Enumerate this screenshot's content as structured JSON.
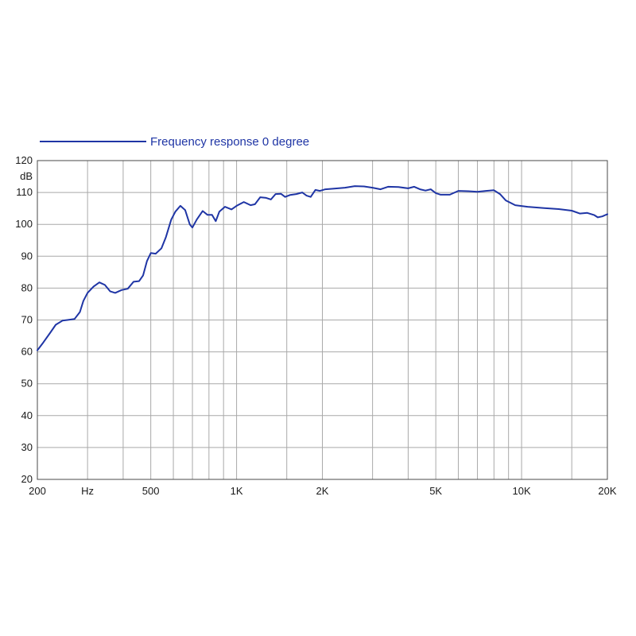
{
  "chart_data": {
    "type": "line",
    "legend_position": "top-left",
    "grid": true,
    "colors": {
      "series": "#1f35a5",
      "grid": "#a9a9a9",
      "axis": "#4a4a4a"
    },
    "series": [
      {
        "name": "Frequency response 0 degree",
        "points": [
          [
            200,
            60.5
          ],
          [
            210,
            63
          ],
          [
            222,
            66
          ],
          [
            232,
            68.5
          ],
          [
            245,
            69.8
          ],
          [
            255,
            70
          ],
          [
            270,
            70.3
          ],
          [
            282,
            72.5
          ],
          [
            290,
            76
          ],
          [
            300,
            78.5
          ],
          [
            315,
            80.5
          ],
          [
            330,
            81.8
          ],
          [
            345,
            81
          ],
          [
            360,
            79
          ],
          [
            375,
            78.5
          ],
          [
            395,
            79.4
          ],
          [
            415,
            79.8
          ],
          [
            435,
            82
          ],
          [
            455,
            82.2
          ],
          [
            470,
            84
          ],
          [
            485,
            88.5
          ],
          [
            500,
            91
          ],
          [
            520,
            90.8
          ],
          [
            545,
            92.5
          ],
          [
            565,
            96
          ],
          [
            590,
            101.5
          ],
          [
            610,
            104
          ],
          [
            635,
            105.8
          ],
          [
            660,
            104.5
          ],
          [
            685,
            100
          ],
          [
            700,
            99
          ],
          [
            725,
            101.5
          ],
          [
            760,
            104.2
          ],
          [
            790,
            103
          ],
          [
            820,
            103
          ],
          [
            845,
            101
          ],
          [
            870,
            104
          ],
          [
            910,
            105.5
          ],
          [
            960,
            104.7
          ],
          [
            1000,
            105.8
          ],
          [
            1060,
            107
          ],
          [
            1120,
            106
          ],
          [
            1160,
            106.3
          ],
          [
            1210,
            108.5
          ],
          [
            1270,
            108.3
          ],
          [
            1320,
            107.8
          ],
          [
            1370,
            109.5
          ],
          [
            1430,
            109.6
          ],
          [
            1480,
            108.6
          ],
          [
            1540,
            109.2
          ],
          [
            1620,
            109.5
          ],
          [
            1700,
            110
          ],
          [
            1760,
            109
          ],
          [
            1820,
            108.6
          ],
          [
            1890,
            110.8
          ],
          [
            1960,
            110.5
          ],
          [
            2050,
            111
          ],
          [
            2200,
            111.2
          ],
          [
            2400,
            111.5
          ],
          [
            2600,
            112
          ],
          [
            2800,
            111.9
          ],
          [
            3000,
            111.5
          ],
          [
            3200,
            111
          ],
          [
            3400,
            111.8
          ],
          [
            3700,
            111.7
          ],
          [
            4000,
            111.3
          ],
          [
            4200,
            111.8
          ],
          [
            4400,
            111
          ],
          [
            4600,
            110.6
          ],
          [
            4800,
            111
          ],
          [
            5000,
            109.8
          ],
          [
            5200,
            109.3
          ],
          [
            5600,
            109.3
          ],
          [
            6000,
            110.5
          ],
          [
            6500,
            110.4
          ],
          [
            7000,
            110.2
          ],
          [
            7500,
            110.5
          ],
          [
            8000,
            110.7
          ],
          [
            8400,
            109.5
          ],
          [
            8800,
            107.5
          ],
          [
            9500,
            106
          ],
          [
            10500,
            105.5
          ],
          [
            12000,
            105.1
          ],
          [
            13500,
            104.8
          ],
          [
            15000,
            104.3
          ],
          [
            16000,
            103.4
          ],
          [
            17000,
            103.6
          ],
          [
            18000,
            102.9
          ],
          [
            18500,
            102.2
          ],
          [
            19200,
            102.5
          ],
          [
            20000,
            103.2
          ]
        ]
      }
    ],
    "x_axis": {
      "scale": "log",
      "range": [
        200,
        20000
      ],
      "tick_labels": [
        {
          "value": 200,
          "label": "200"
        },
        {
          "value": 300,
          "label": "Hz"
        },
        {
          "value": 500,
          "label": "500"
        },
        {
          "value": 1000,
          "label": "1K"
        },
        {
          "value": 2000,
          "label": "2K"
        },
        {
          "value": 5000,
          "label": "5K"
        },
        {
          "value": 10000,
          "label": "10K"
        },
        {
          "value": 20000,
          "label": "20K"
        }
      ],
      "gridlines": [
        300,
        400,
        500,
        600,
        700,
        800,
        900,
        1000,
        1500,
        2000,
        3000,
        4000,
        5000,
        6000,
        7000,
        8000,
        9000,
        10000,
        15000
      ]
    },
    "y_axis": {
      "scale": "linear",
      "range": [
        20,
        120
      ],
      "unit_label": "dB",
      "tick_labels": [
        "20",
        "30",
        "40",
        "50",
        "60",
        "70",
        "80",
        "90",
        "100",
        "110",
        "120"
      ]
    }
  }
}
